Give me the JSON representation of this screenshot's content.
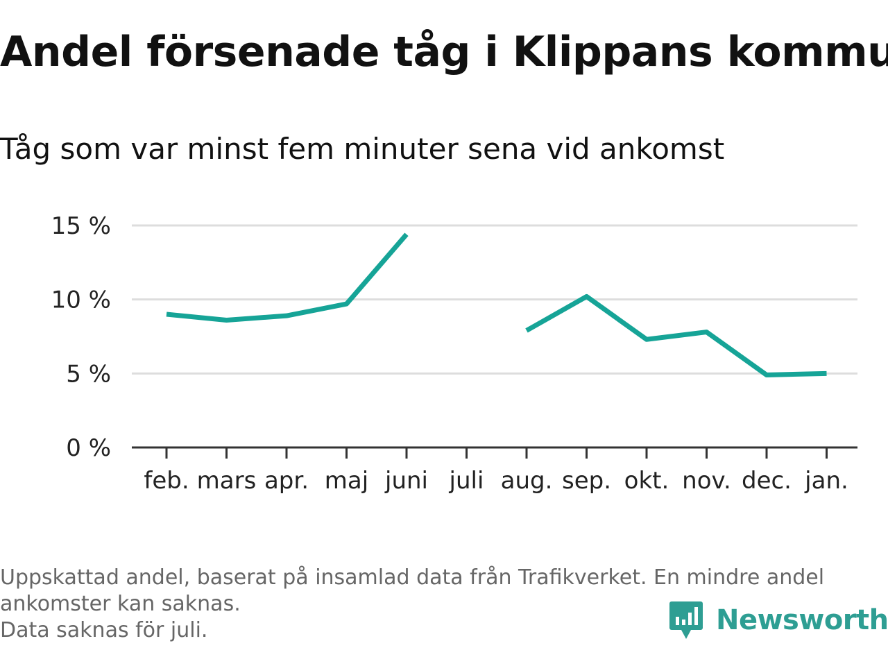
{
  "title": "Andel försenade tåg i Klippans kommun",
  "subtitle": "Tåg som var minst fem minuter sena vid ankomst",
  "notes": [
    "Uppskattad andel, baserat på insamlad data från Trafikverket. En mindre andel",
    "ankomster kan saknas.",
    "Data saknas för juli."
  ],
  "logo": {
    "text": "Newsworthy",
    "icon": "bar-chart-bubble-icon"
  },
  "colors": {
    "line": "#16a497",
    "grid": "#dddddd",
    "axis": "#333333"
  },
  "chart_data": {
    "type": "line",
    "title": "Andel försenade tåg i Klippans kommun",
    "subtitle": "Tåg som var minst fem minuter sena vid ankomst",
    "categories": [
      "feb.",
      "mars",
      "apr.",
      "maj",
      "juni",
      "juli",
      "aug.",
      "sep.",
      "okt.",
      "nov.",
      "dec.",
      "jan."
    ],
    "values": [
      9.0,
      8.6,
      8.9,
      9.7,
      14.4,
      null,
      7.9,
      10.2,
      7.3,
      7.8,
      4.9,
      5.0
    ],
    "ylim": [
      0,
      15
    ],
    "yticks": [
      0,
      5,
      10,
      15
    ],
    "ytick_labels": [
      "0 %",
      "5 %",
      "10 %",
      "15 %"
    ],
    "grid": true,
    "legend": "none"
  }
}
